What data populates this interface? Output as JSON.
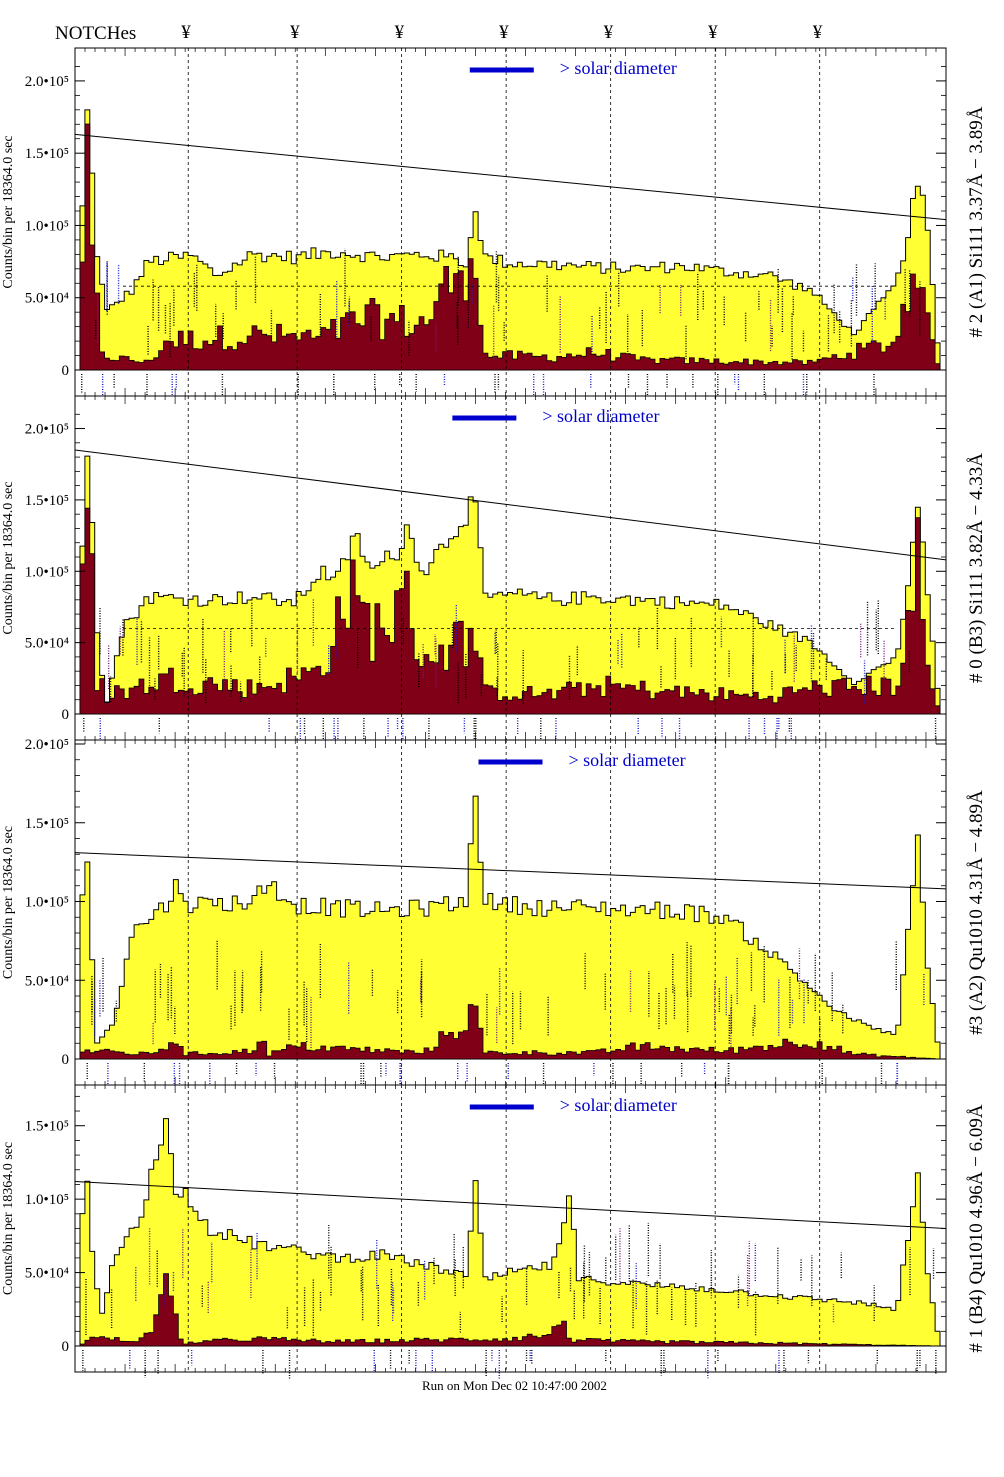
{
  "header": {
    "notches_label": "NOTCHes",
    "notch_symbol": "¥"
  },
  "footer": {
    "run_text": "Run on Mon Dec 02 10:47:00 2002"
  },
  "colors": {
    "fill_total": "#ffff33",
    "fill_secondary": "#800018",
    "line_label_black": "#000000",
    "line_label_blue": "#1a1acc",
    "line_label_purple": "#7a1a7a",
    "accent_solar": "#0000cc"
  },
  "chart_data": [
    {
      "type": "area",
      "channel_label": "# 2 (A1) Si111  3.37Å − 3.89Å",
      "ylabel": "Counts/bin per  18364.0 sec",
      "ylim": [
        0,
        220000
      ],
      "yticks": [
        0,
        50000,
        100000,
        150000,
        200000
      ],
      "ytick_labels": [
        "0",
        "5.0•10⁴",
        "1.0•10⁵",
        "1.5•10⁵",
        "2.0•10⁵"
      ],
      "annotation": "> solar diameter",
      "solar_bar_center_frac": 0.49,
      "total_anchors": [
        [
          0.0,
          0
        ],
        [
          0.005,
          195000
        ],
        [
          0.012,
          160000
        ],
        [
          0.018,
          90000
        ],
        [
          0.03,
          40000
        ],
        [
          0.06,
          55000
        ],
        [
          0.08,
          75000
        ],
        [
          0.13,
          79000
        ],
        [
          0.16,
          65000
        ],
        [
          0.2,
          80000
        ],
        [
          0.25,
          78000
        ],
        [
          0.3,
          82000
        ],
        [
          0.35,
          78000
        ],
        [
          0.4,
          80000
        ],
        [
          0.44,
          77000
        ],
        [
          0.45,
          72000
        ],
        [
          0.46,
          115000
        ],
        [
          0.47,
          78000
        ],
        [
          0.5,
          74000
        ],
        [
          0.55,
          73000
        ],
        [
          0.6,
          71000
        ],
        [
          0.65,
          70000
        ],
        [
          0.7,
          72000
        ],
        [
          0.75,
          68000
        ],
        [
          0.8,
          66000
        ],
        [
          0.85,
          55000
        ],
        [
          0.9,
          25000
        ],
        [
          0.95,
          60000
        ],
        [
          0.975,
          130000
        ],
        [
          0.985,
          100000
        ],
        [
          1.0,
          0
        ]
      ],
      "secondary_anchors": [
        [
          0.0,
          0
        ],
        [
          0.005,
          155000
        ],
        [
          0.012,
          90000
        ],
        [
          0.025,
          10000
        ],
        [
          0.08,
          5000
        ],
        [
          0.1,
          20000
        ],
        [
          0.2,
          24000
        ],
        [
          0.28,
          22000
        ],
        [
          0.33,
          36000
        ],
        [
          0.4,
          32000
        ],
        [
          0.46,
          90000
        ],
        [
          0.47,
          10000
        ],
        [
          0.55,
          9000
        ],
        [
          0.6,
          12000
        ],
        [
          0.65,
          7000
        ],
        [
          0.75,
          6000
        ],
        [
          0.85,
          5000
        ],
        [
          0.95,
          20000
        ],
        [
          0.975,
          90000
        ],
        [
          0.985,
          30000
        ],
        [
          1.0,
          0
        ]
      ],
      "fit_line": [
        [
          0.0,
          163000
        ],
        [
          1.0,
          104000
        ]
      ],
      "dashed_level": 58000
    },
    {
      "type": "area",
      "channel_label": "# 0 (B3) Si111  3.82Å − 4.33Å",
      "ylabel": "Counts/bin per  18364.0 sec",
      "ylim": [
        0,
        220000
      ],
      "yticks": [
        0,
        50000,
        100000,
        150000,
        200000
      ],
      "ytick_labels": [
        "0",
        "5.0•10⁴",
        "1.0•10⁵",
        "1.5•10⁵",
        "2.0•10⁵"
      ],
      "annotation": "> solar diameter",
      "solar_bar_center_frac": 0.47,
      "total_anchors": [
        [
          0.0,
          0
        ],
        [
          0.005,
          205000
        ],
        [
          0.012,
          175000
        ],
        [
          0.02,
          60000
        ],
        [
          0.03,
          5000
        ],
        [
          0.05,
          60000
        ],
        [
          0.08,
          82000
        ],
        [
          0.15,
          80000
        ],
        [
          0.2,
          82000
        ],
        [
          0.25,
          78000
        ],
        [
          0.28,
          100000
        ],
        [
          0.3,
          95000
        ],
        [
          0.32,
          125000
        ],
        [
          0.34,
          100000
        ],
        [
          0.37,
          115000
        ],
        [
          0.38,
          130000
        ],
        [
          0.4,
          100000
        ],
        [
          0.46,
          150000
        ],
        [
          0.47,
          80000
        ],
        [
          0.5,
          84000
        ],
        [
          0.55,
          80000
        ],
        [
          0.6,
          82000
        ],
        [
          0.65,
          80000
        ],
        [
          0.7,
          78000
        ],
        [
          0.75,
          76000
        ],
        [
          0.85,
          50000
        ],
        [
          0.9,
          22000
        ],
        [
          0.95,
          40000
        ],
        [
          0.975,
          140000
        ],
        [
          0.985,
          90000
        ],
        [
          1.0,
          0
        ]
      ],
      "secondary_anchors": [
        [
          0.0,
          0
        ],
        [
          0.005,
          175000
        ],
        [
          0.012,
          110000
        ],
        [
          0.02,
          20000
        ],
        [
          0.05,
          15000
        ],
        [
          0.1,
          25000
        ],
        [
          0.2,
          18000
        ],
        [
          0.28,
          30000
        ],
        [
          0.31,
          85000
        ],
        [
          0.34,
          60000
        ],
        [
          0.38,
          75000
        ],
        [
          0.4,
          40000
        ],
        [
          0.46,
          55000
        ],
        [
          0.47,
          15000
        ],
        [
          0.55,
          14000
        ],
        [
          0.6,
          20000
        ],
        [
          0.7,
          15000
        ],
        [
          0.8,
          12000
        ],
        [
          0.85,
          18000
        ],
        [
          0.95,
          20000
        ],
        [
          0.975,
          110000
        ],
        [
          0.985,
          30000
        ],
        [
          1.0,
          0
        ]
      ],
      "fit_line": [
        [
          0.0,
          185000
        ],
        [
          1.0,
          108000
        ]
      ],
      "dashed_level": 60000
    },
    {
      "type": "area",
      "channel_label": "#3 (A2) Qu1010  4.31Å − 4.89Å",
      "ylabel": "Counts/bin per  18364.0 sec",
      "ylim": [
        0,
        200000
      ],
      "yticks": [
        0,
        50000,
        100000,
        150000,
        200000
      ],
      "ytick_labels": [
        "0",
        "5.0•10⁴",
        "1.0•10⁵",
        "1.5•10⁵",
        "2.0•10⁵"
      ],
      "annotation": "> solar diameter",
      "solar_bar_center_frac": 0.5,
      "total_anchors": [
        [
          0.0,
          0
        ],
        [
          0.005,
          180000
        ],
        [
          0.012,
          80000
        ],
        [
          0.02,
          10000
        ],
        [
          0.04,
          25000
        ],
        [
          0.06,
          80000
        ],
        [
          0.1,
          98000
        ],
        [
          0.11,
          110000
        ],
        [
          0.13,
          98000
        ],
        [
          0.2,
          100000
        ],
        [
          0.22,
          112000
        ],
        [
          0.25,
          98000
        ],
        [
          0.3,
          96000
        ],
        [
          0.35,
          94000
        ],
        [
          0.4,
          96000
        ],
        [
          0.45,
          100000
        ],
        [
          0.46,
          175000
        ],
        [
          0.47,
          100000
        ],
        [
          0.5,
          98000
        ],
        [
          0.55,
          96000
        ],
        [
          0.6,
          96000
        ],
        [
          0.65,
          95000
        ],
        [
          0.7,
          94000
        ],
        [
          0.75,
          90000
        ],
        [
          0.82,
          60000
        ],
        [
          0.88,
          30000
        ],
        [
          0.92,
          20000
        ],
        [
          0.95,
          15000
        ],
        [
          0.975,
          140000
        ],
        [
          0.985,
          60000
        ],
        [
          1.0,
          0
        ]
      ],
      "secondary_anchors": [
        [
          0.0,
          0
        ],
        [
          0.005,
          8000
        ],
        [
          0.012,
          5000
        ],
        [
          0.08,
          3000
        ],
        [
          0.1,
          8000
        ],
        [
          0.11,
          14000
        ],
        [
          0.12,
          3000
        ],
        [
          0.2,
          5000
        ],
        [
          0.21,
          14000
        ],
        [
          0.22,
          3000
        ],
        [
          0.25,
          8000
        ],
        [
          0.4,
          4000
        ],
        [
          0.46,
          30000
        ],
        [
          0.47,
          4000
        ],
        [
          0.6,
          4000
        ],
        [
          0.65,
          8000
        ],
        [
          0.75,
          5000
        ],
        [
          0.85,
          12000
        ],
        [
          0.9,
          3000
        ],
        [
          1.0,
          0
        ]
      ],
      "fit_line": [
        [
          0.0,
          131000
        ],
        [
          1.0,
          108000
        ]
      ],
      "dashed_level": null
    },
    {
      "type": "area",
      "channel_label": "# 1 (B4) Qu1010 4.96Å − 6.09Å",
      "ylabel": "Counts/bin per  18364.0 sec",
      "ylim": [
        0,
        175000
      ],
      "yticks": [
        0,
        50000,
        100000,
        150000
      ],
      "ytick_labels": [
        "0",
        "5.0•10⁴",
        "1.0•10⁵",
        "1.5•10⁵"
      ],
      "annotation": "> solar diameter",
      "solar_bar_center_frac": 0.49,
      "total_anchors": [
        [
          0.0,
          0
        ],
        [
          0.005,
          155000
        ],
        [
          0.012,
          70000
        ],
        [
          0.025,
          20000
        ],
        [
          0.04,
          60000
        ],
        [
          0.07,
          90000
        ],
        [
          0.09,
          130000
        ],
        [
          0.1,
          150000
        ],
        [
          0.11,
          110000
        ],
        [
          0.13,
          100000
        ],
        [
          0.15,
          80000
        ],
        [
          0.2,
          70000
        ],
        [
          0.25,
          65000
        ],
        [
          0.3,
          60000
        ],
        [
          0.35,
          62000
        ],
        [
          0.4,
          55000
        ],
        [
          0.45,
          48000
        ],
        [
          0.46,
          110000
        ],
        [
          0.47,
          45000
        ],
        [
          0.5,
          50000
        ],
        [
          0.55,
          55000
        ],
        [
          0.57,
          100000
        ],
        [
          0.58,
          45000
        ],
        [
          0.6,
          45000
        ],
        [
          0.65,
          42000
        ],
        [
          0.7,
          40000
        ],
        [
          0.75,
          38000
        ],
        [
          0.8,
          35000
        ],
        [
          0.85,
          32000
        ],
        [
          0.9,
          30000
        ],
        [
          0.95,
          25000
        ],
        [
          0.975,
          120000
        ],
        [
          0.985,
          50000
        ],
        [
          1.0,
          0
        ]
      ],
      "secondary_anchors": [
        [
          0.0,
          0
        ],
        [
          0.01,
          6000
        ],
        [
          0.07,
          3000
        ],
        [
          0.09,
          20000
        ],
        [
          0.1,
          40000
        ],
        [
          0.11,
          18000
        ],
        [
          0.12,
          2000
        ],
        [
          0.2,
          5000
        ],
        [
          0.3,
          3000
        ],
        [
          0.4,
          4000
        ],
        [
          0.5,
          5000
        ],
        [
          0.55,
          8000
        ],
        [
          0.56,
          22000
        ],
        [
          0.57,
          4000
        ],
        [
          0.65,
          3000
        ],
        [
          0.8,
          2000
        ],
        [
          1.0,
          0
        ]
      ],
      "fit_line": [
        [
          0.0,
          112000
        ],
        [
          1.0,
          80000
        ]
      ],
      "dashed_level": null
    }
  ],
  "notch_positions_frac": [
    0.13,
    0.255,
    0.375,
    0.495,
    0.615,
    0.735,
    0.855
  ]
}
